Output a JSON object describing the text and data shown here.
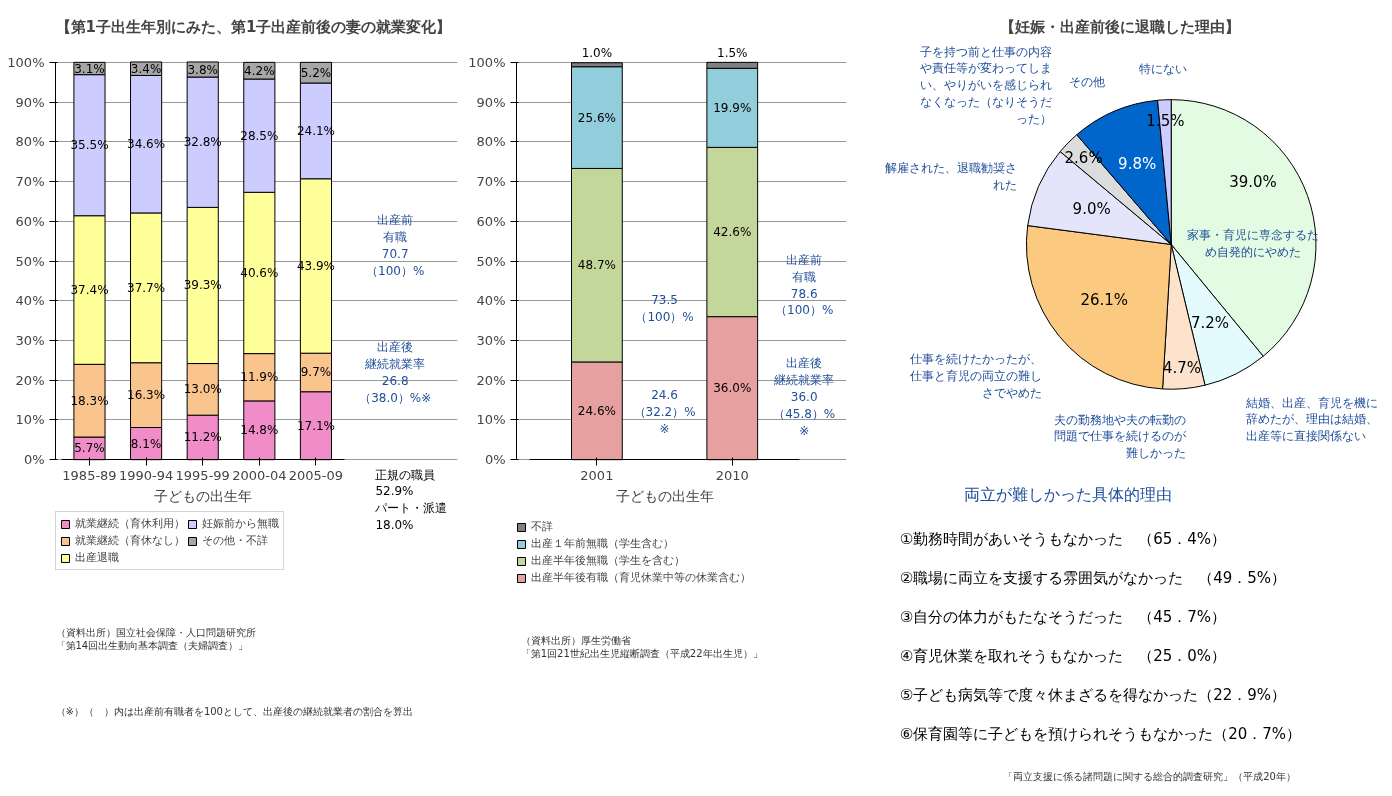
{
  "chart_data": [
    {
      "type": "bar",
      "stacked": true,
      "title": "【第1子出生年別にみた、第1子出産前後の妻の就業変化】",
      "xlabel": "子どもの出生年",
      "categories": [
        "1985-89",
        "1990-94",
        "1995-99",
        "2000-04",
        "2005-09"
      ],
      "ylim": [
        0,
        100
      ],
      "yticks": [
        {
          "value": 0,
          "label": "0%"
        },
        {
          "value": 10,
          "label": "10%"
        },
        {
          "value": 20,
          "label": "20%"
        },
        {
          "value": 30,
          "label": "30%"
        },
        {
          "value": 40,
          "label": "40%"
        },
        {
          "value": 50,
          "label": "50%"
        },
        {
          "value": 60,
          "label": "60%"
        },
        {
          "value": 70,
          "label": "70%"
        },
        {
          "value": 80,
          "label": "80%"
        },
        {
          "value": 90,
          "label": "90%"
        },
        {
          "value": 100,
          "label": "100%"
        }
      ],
      "grid": "y",
      "legend": "bottom",
      "series": [
        {
          "name": "就業継続（育休利用）",
          "color": "#f08cc8",
          "values": [
            5.7,
            8.1,
            11.2,
            14.8,
            17.1
          ],
          "value_labels": [
            "5.7%",
            "8.1%",
            "11.2%",
            "14.8%",
            "17.1%"
          ]
        },
        {
          "name": "就業継続（育休なし）",
          "color": "#fac48e",
          "values": [
            18.3,
            16.3,
            13.0,
            11.9,
            9.7
          ],
          "value_labels": [
            "18.3%",
            "16.3%",
            "13.0%",
            "11.9%",
            "9.7%"
          ]
        },
        {
          "name": "出産退職",
          "color": "#ffff99",
          "values": [
            37.4,
            37.7,
            39.3,
            40.6,
            43.9
          ],
          "value_labels": [
            "37.4%",
            "37.7%",
            "39.3%",
            "40.6%",
            "43.9%"
          ]
        },
        {
          "name": "妊娠前から無職",
          "color": "#ccccff",
          "values": [
            35.5,
            34.6,
            32.8,
            28.5,
            24.1
          ],
          "value_labels": [
            "35.5%",
            "34.6%",
            "32.8%",
            "28.5%",
            "24.1%"
          ]
        },
        {
          "name": "その他・不詳",
          "color": "#a6a6a6",
          "values": [
            3.1,
            3.4,
            3.8,
            4.2,
            5.2
          ],
          "value_labels": [
            "3.1%",
            "3.4%",
            "3.8%",
            "4.2%",
            "5.2%"
          ]
        }
      ],
      "annotations": [
        "出産前有職70.7（100）%",
        "出産後継続就業率26.8（38.0）%※",
        "正規の職員52.9%パート・派遣18.0%",
        "（資料出所）国立社会保障・人口問題研究所「第14回出生動向基本調査（夫婦調査）」",
        "（※）（　）内は出産前有職者を100として、出産後の継続就業者の割合を算出"
      ]
    },
    {
      "type": "bar",
      "stacked": true,
      "xlabel": "子どもの出生年",
      "categories": [
        "2001",
        "2010"
      ],
      "ylim": [
        0,
        100
      ],
      "yticks": [
        {
          "value": 0,
          "label": "0%"
        },
        {
          "value": 10,
          "label": "10%"
        },
        {
          "value": 20,
          "label": "20%"
        },
        {
          "value": 30,
          "label": "30%"
        },
        {
          "value": 40,
          "label": "40%"
        },
        {
          "value": 50,
          "label": "50%"
        },
        {
          "value": 60,
          "label": "60%"
        },
        {
          "value": 70,
          "label": "70%"
        },
        {
          "value": 80,
          "label": "80%"
        },
        {
          "value": 90,
          "label": "90%"
        },
        {
          "value": 100,
          "label": "100%"
        }
      ],
      "grid": "y",
      "legend": "bottom",
      "series": [
        {
          "name": "出産半年後有職（育児休業中等の休業含む）",
          "color": "#e6a0a0",
          "values": [
            24.6,
            36.0
          ],
          "value_labels": [
            "24.6%",
            "36.0%"
          ]
        },
        {
          "name": "出産半年後無職（学生を含む）",
          "color": "#c4d79b",
          "values": [
            48.7,
            42.6
          ],
          "value_labels": [
            "48.7%",
            "42.6%"
          ]
        },
        {
          "name": "出産１年前無職（学生含む）",
          "color": "#92cddc",
          "values": [
            25.6,
            19.9
          ],
          "value_labels": [
            "25.6%",
            "19.9%"
          ]
        },
        {
          "name": "不詳",
          "color": "#808080",
          "values": [
            1.0,
            1.5
          ],
          "value_labels": [
            "1.0%",
            "1.5%"
          ]
        }
      ],
      "annotations": [
        "73.5（100）%",
        "24.6（32.2）%※",
        "出産前有職78.6（100）%",
        "出産後継続就業率36.0（45.8）%※",
        "（資料出所）厚生労働省「第1回21世紀出生児縦断調査（平成22年出生児）」"
      ]
    },
    {
      "type": "pie",
      "title": "【妊娠・出産前後に退職した理由】",
      "categories": [
        "家事・育児に専念するため自発的にやめた",
        "結婚、出産、育児を機に辞めたが、理由は結婚、出産等に直接関係ない",
        "夫の勤務地や夫の転勤の問題で仕事を続けるのが難しかった",
        "仕事を続けたかったが、仕事と育児の両立の難しさでやめた",
        "解雇された、退職勧奨された",
        "子を持つ前と仕事の内容や責任等が変わってしまい、やりがいを感じられなくなった（なりそうだった）",
        "その他",
        "特にない"
      ],
      "values": [
        39.0,
        7.2,
        4.7,
        26.1,
        9.0,
        2.6,
        9.8,
        1.5
      ],
      "colors": [
        "#e3fbe3",
        "#e3fbfd",
        "#fde3cc",
        "#fbc97f",
        "#e4e4fa",
        "#dcdcdc",
        "#0066cc",
        "#ccccff"
      ],
      "value_labels": [
        "39.0%",
        "7.2%",
        "4.7%",
        "26.1%",
        "9.0%",
        "2.6%",
        "9.8%",
        "1.5%"
      ],
      "annotations": [
        "両立が難しかった具体的理由",
        "①勤務時間があいそうもなかった　（65．4%）",
        "②職場に両立を支援する雰囲気がなかった　（49．5%）",
        "③自分の体力がもたなそうだった　（45．7%）",
        "④育児休業を取れそうもなかった　（25．0%）",
        "⑤子ども病気等で度々休まざるを得なかった（22．9%）",
        "⑥保育園等に子どもを預けられそうもなかった（20．7%）",
        "「両立支援に係る諸問題に関する総合的調査研究」（平成20年）"
      ]
    }
  ]
}
